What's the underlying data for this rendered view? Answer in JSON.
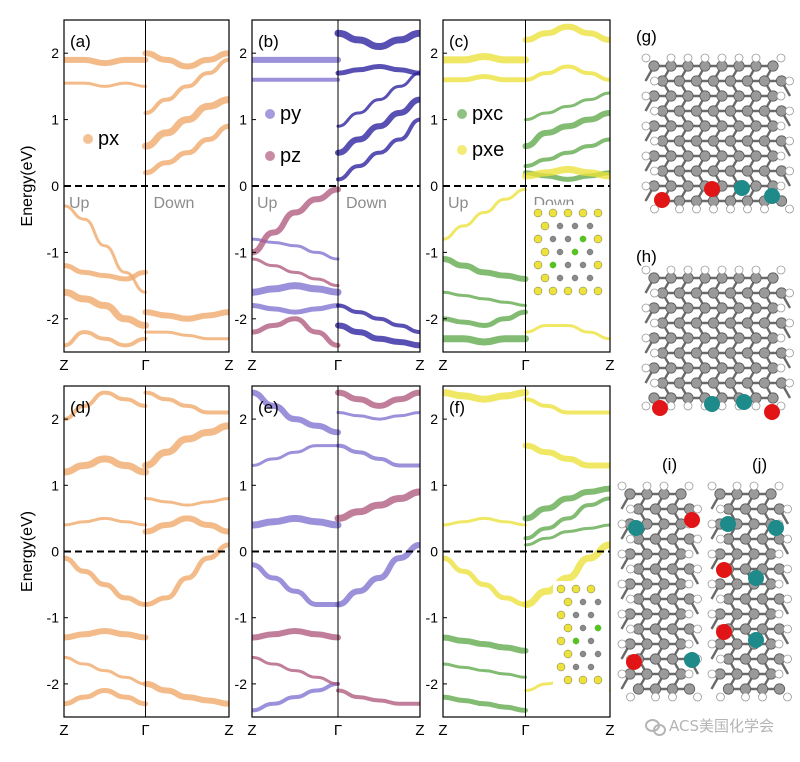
{
  "figure": {
    "y_axis_label": "Energy(eV)",
    "y_ticks": [
      "2",
      "1",
      "0",
      "-1",
      "-2"
    ],
    "x_ticks": [
      "Z",
      "Γ",
      "Z"
    ],
    "panel_labels": [
      "(a)",
      "(b)",
      "(c)",
      "(d)",
      "(e)",
      "(f)",
      "(g)",
      "(h)",
      "(i)",
      "(j)"
    ],
    "spin_labels": {
      "up": "Up",
      "down": "Down"
    },
    "legends": {
      "a": [
        "px"
      ],
      "b": [
        "py",
        "pz"
      ],
      "c": [
        "pxc",
        "pxe"
      ]
    },
    "colors": {
      "px": "#f0a868",
      "py": "#7f72d0",
      "pz": "#b05a7e",
      "pz_dark": "#2a1f9e",
      "pxc": "#5fa84a",
      "pxe": "#ece23a",
      "carbon": "#9a9a9a",
      "hydrogen": "#ffffff",
      "iso_red": "#e11515",
      "iso_teal": "#1f8a8a"
    },
    "watermark": "ACS美国化学会"
  },
  "chart_data": [
    {
      "panel": "(a)",
      "type": "line",
      "ylabel": "Energy(eV)",
      "ylim": [
        -2.5,
        2.5
      ],
      "x_ticks": [
        "Z",
        "Γ",
        "Z"
      ],
      "fermi_level": 0,
      "series": [
        {
          "name": "px",
          "spin": "Up",
          "bands": [
            [
              -0.3,
              -0.5,
              -0.9,
              -1.3,
              -1.6
            ],
            [
              -1.2,
              -1.3,
              -1.35,
              -1.4,
              -1.3
            ],
            [
              -1.6,
              -1.7,
              -1.8,
              -2.0,
              -2.1
            ],
            [
              -2.4,
              -2.2,
              -2.3,
              -2.4,
              -2.3
            ],
            [
              1.9,
              1.9,
              1.85,
              1.9,
              1.9
            ],
            [
              1.55,
              1.55,
              1.5,
              1.55,
              1.5
            ]
          ]
        },
        {
          "name": "px",
          "spin": "Down",
          "bands": [
            [
              -1.9,
              -1.95,
              -2.0,
              -1.95,
              -1.9
            ],
            [
              -2.2,
              -2.2,
              -2.25,
              -2.3,
              -2.3
            ],
            [
              0.2,
              0.35,
              0.5,
              0.7,
              0.9
            ],
            [
              0.6,
              0.8,
              1.0,
              1.2,
              1.3
            ],
            [
              1.1,
              1.3,
              1.5,
              1.7,
              1.9
            ],
            [
              2.0,
              1.9,
              1.8,
              1.9,
              2.0
            ]
          ]
        }
      ]
    },
    {
      "panel": "(b)",
      "type": "line",
      "ylabel": "Energy(eV)",
      "ylim": [
        -2.5,
        2.5
      ],
      "x_ticks": [
        "Z",
        "Γ",
        "Z"
      ],
      "fermi_level": 0,
      "series": [
        {
          "name": "py",
          "spin": "Up",
          "bands": [
            [
              -0.8,
              -0.85,
              -0.9,
              -1.0,
              -1.1
            ],
            [
              -1.8,
              -1.85,
              -1.9,
              -1.85,
              -1.8
            ],
            [
              -1.6,
              -1.55,
              -1.5,
              -1.55,
              -1.6
            ],
            [
              1.6,
              1.6,
              1.6,
              1.6,
              1.6
            ],
            [
              1.9,
              1.9,
              1.9,
              1.9,
              1.9
            ]
          ]
        },
        {
          "name": "pz",
          "spin": "Up",
          "bands": [
            [
              -1.0,
              -0.7,
              -0.4,
              -0.2,
              -0.05
            ],
            [
              -1.1,
              -1.2,
              -1.3,
              -1.4,
              -1.5
            ],
            [
              -2.2,
              -2.1,
              -2.0,
              -2.2,
              -2.4
            ]
          ]
        },
        {
          "name": "pz",
          "spin": "Down",
          "bands": [
            [
              0.1,
              0.3,
              0.5,
              0.7,
              1.0
            ],
            [
              0.5,
              0.7,
              0.9,
              1.1,
              1.3
            ],
            [
              0.9,
              1.1,
              1.3,
              1.5,
              1.7
            ],
            [
              1.7,
              1.75,
              1.8,
              1.75,
              1.7
            ],
            [
              2.3,
              2.2,
              2.1,
              2.2,
              2.3
            ],
            [
              -1.8,
              -1.9,
              -2.0,
              -2.1,
              -2.2
            ],
            [
              -2.1,
              -2.2,
              -2.3,
              -2.35,
              -2.4
            ]
          ]
        }
      ]
    },
    {
      "panel": "(c)",
      "type": "line",
      "ylabel": "Energy(eV)",
      "ylim": [
        -2.5,
        2.5
      ],
      "x_ticks": [
        "Z",
        "Γ",
        "Z"
      ],
      "fermi_level": 0,
      "series": [
        {
          "name": "pxe",
          "spin": "Up",
          "bands": [
            [
              -0.8,
              -0.6,
              -0.4,
              -0.2,
              -0.05
            ],
            [
              1.6,
              1.6,
              1.65,
              1.6,
              1.6
            ],
            [
              1.9,
              1.9,
              1.95,
              1.9,
              1.9
            ]
          ]
        },
        {
          "name": "pxc",
          "spin": "Up",
          "bands": [
            [
              -1.1,
              -1.2,
              -1.3,
              -1.35,
              -1.4
            ],
            [
              -1.6,
              -1.65,
              -1.7,
              -1.75,
              -1.8
            ],
            [
              -2.0,
              -2.05,
              -2.1,
              -2.0,
              -1.9
            ],
            [
              -2.3,
              -2.3,
              -2.35,
              -2.3,
              -2.3
            ]
          ]
        },
        {
          "name": "pxc",
          "spin": "Down",
          "bands": [
            [
              0.3,
              0.4,
              0.5,
              0.6,
              0.7
            ],
            [
              0.6,
              0.8,
              0.9,
              1.0,
              1.1
            ],
            [
              1.0,
              1.1,
              1.2,
              1.3,
              1.4
            ],
            [
              0.2,
              0.15,
              0.1,
              0.15,
              0.2
            ]
          ]
        },
        {
          "name": "pxe",
          "spin": "Down",
          "bands": [
            [
              0.15,
              0.2,
              0.25,
              0.2,
              0.15
            ],
            [
              1.6,
              1.7,
              1.8,
              1.7,
              1.6
            ],
            [
              2.2,
              2.3,
              2.4,
              2.3,
              2.2
            ],
            [
              -2.2,
              -2.1,
              -2.1,
              -2.2,
              -2.3
            ]
          ]
        }
      ]
    },
    {
      "panel": "(d)",
      "type": "line",
      "ylabel": "Energy(eV)",
      "ylim": [
        -2.5,
        2.5
      ],
      "x_ticks": [
        "Z",
        "Γ",
        "Z"
      ],
      "fermi_level": 0,
      "series": [
        {
          "name": "px",
          "spin": "Up",
          "bands": [
            [
              0.4,
              0.45,
              0.5,
              0.45,
              0.4
            ],
            [
              -0.1,
              -0.3,
              -0.5,
              -0.7,
              -0.8
            ],
            [
              1.2,
              1.3,
              1.4,
              1.3,
              1.2
            ],
            [
              2.0,
              2.2,
              2.4,
              2.3,
              2.2
            ],
            [
              -1.3,
              -1.25,
              -1.2,
              -1.25,
              -1.3
            ],
            [
              -1.6,
              -1.7,
              -1.8,
              -1.9,
              -2.0
            ],
            [
              -2.3,
              -2.2,
              -2.1,
              -2.2,
              -2.3
            ]
          ]
        },
        {
          "name": "px",
          "spin": "Down",
          "bands": [
            [
              0.3,
              0.4,
              0.5,
              0.4,
              0.3
            ],
            [
              0.8,
              0.75,
              0.7,
              0.75,
              0.8
            ],
            [
              -0.8,
              -0.7,
              -0.4,
              -0.1,
              0.1
            ],
            [
              1.3,
              1.5,
              1.7,
              1.8,
              1.9
            ],
            [
              2.4,
              2.3,
              2.2,
              2.1,
              2.1
            ],
            [
              -2.0,
              -2.1,
              -2.2,
              -2.25,
              -2.3
            ]
          ]
        }
      ]
    },
    {
      "panel": "(e)",
      "type": "line",
      "ylabel": "Energy(eV)",
      "ylim": [
        -2.5,
        2.5
      ],
      "x_ticks": [
        "Z",
        "Γ",
        "Z"
      ],
      "fermi_level": 0,
      "series": [
        {
          "name": "py",
          "spin": "Up",
          "bands": [
            [
              1.3,
              1.4,
              1.5,
              1.6,
              1.6
            ],
            [
              -0.2,
              -0.4,
              -0.6,
              -0.8,
              -0.8
            ],
            [
              0.4,
              0.45,
              0.5,
              0.45,
              0.4
            ],
            [
              -2.4,
              -2.3,
              -2.2,
              -2.1,
              -2.0
            ],
            [
              2.4,
              2.2,
              2.0,
              1.9,
              1.8
            ]
          ]
        },
        {
          "name": "pz",
          "spin": "Up",
          "bands": [
            [
              -1.3,
              -1.25,
              -1.2,
              -1.25,
              -1.3
            ],
            [
              -1.6,
              -1.7,
              -1.8,
              -1.9,
              -2.0
            ]
          ]
        },
        {
          "name": "py",
          "spin": "Down",
          "bands": [
            [
              1.6,
              1.5,
              1.4,
              1.3,
              1.3
            ],
            [
              -0.8,
              -0.6,
              -0.4,
              -0.1,
              0.1
            ],
            [
              2.1,
              2.05,
              2.0,
              2.05,
              2.1
            ]
          ]
        },
        {
          "name": "pz",
          "spin": "Down",
          "bands": [
            [
              0.5,
              0.6,
              0.7,
              0.8,
              0.9
            ],
            [
              -2.1,
              -2.2,
              -2.25,
              -2.3,
              -2.3
            ],
            [
              2.4,
              2.3,
              2.2,
              2.3,
              2.4
            ]
          ]
        }
      ]
    },
    {
      "panel": "(f)",
      "type": "line",
      "ylabel": "Energy(eV)",
      "ylim": [
        -2.5,
        2.5
      ],
      "x_ticks": [
        "Z",
        "Γ",
        "Z"
      ],
      "fermi_level": 0,
      "series": [
        {
          "name": "pxe",
          "spin": "Up",
          "bands": [
            [
              0.4,
              0.45,
              0.5,
              0.45,
              0.4
            ],
            [
              -0.1,
              -0.3,
              -0.5,
              -0.7,
              -0.8
            ],
            [
              2.4,
              2.35,
              2.3,
              2.35,
              2.4
            ]
          ]
        },
        {
          "name": "pxc",
          "spin": "Up",
          "bands": [
            [
              -1.3,
              -1.35,
              -1.4,
              -1.45,
              -1.5
            ],
            [
              -1.7,
              -1.75,
              -1.8,
              -1.85,
              -1.9
            ],
            [
              -2.2,
              -2.25,
              -2.3,
              -2.35,
              -2.4
            ]
          ]
        },
        {
          "name": "pxc",
          "spin": "Down",
          "bands": [
            [
              0.2,
              0.35,
              0.5,
              0.7,
              0.8
            ],
            [
              0.5,
              0.65,
              0.8,
              0.9,
              0.95
            ],
            [
              0.1,
              0.2,
              0.3,
              0.35,
              0.4
            ]
          ]
        },
        {
          "name": "pxe",
          "spin": "Down",
          "bands": [
            [
              -0.8,
              -0.6,
              -0.4,
              -0.1,
              0.1
            ],
            [
              2.3,
              2.2,
              2.1,
              2.1,
              2.1
            ],
            [
              1.6,
              1.5,
              1.4,
              1.3,
              1.3
            ],
            [
              -2.1,
              -2.0,
              -1.9,
              -2.0,
              -2.1
            ]
          ]
        }
      ]
    }
  ]
}
